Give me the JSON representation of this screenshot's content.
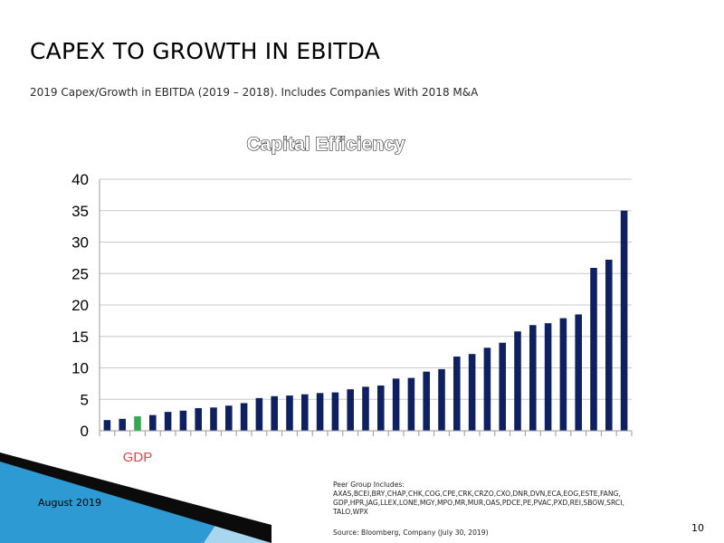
{
  "slide": {
    "title": "CAPEX TO GROWTH IN EBITDA",
    "subtitle": "2019 Capex/Growth in EBITDA (2019 – 2018). Includes Companies With 2018 M&A",
    "date": "August 2019",
    "page_number": "10"
  },
  "footnote": {
    "peer_group_lines": [
      "Peer Group Includes:",
      "AXAS,BCEI,BRY,CHAP,CHK,COG,CPE,CRK,CRZO,CXO,DNR,DVN,ECA,EOG,ESTE,FANG,",
      "GDP,HPR,JAG,LLEX,LONE,MGY,MPO,MR,MUR,OAS,PDCE,PE,PVAC,PXD,REI,SBOW,SRCI,",
      "TALO,WPX"
    ],
    "source": "Source: Bloomberg, Company (July 30, 2019)"
  },
  "colors": {
    "bar": "#0e2060",
    "highlight_bar": "#36a852",
    "highlight_label": "#e0454b",
    "gridline": "#c8c8c8",
    "deco_dark": "#0b0b0b",
    "deco_blue": "#2d9ad3",
    "deco_light": "#a9d6ef"
  },
  "chart_data": {
    "type": "bar",
    "title": "Capital Efficiency",
    "xlabel": "",
    "ylabel": "",
    "ylim": [
      0,
      40
    ],
    "yticks": [
      0,
      5,
      10,
      15,
      20,
      25,
      30,
      35,
      40
    ],
    "grid": true,
    "highlight_index": 2,
    "highlight_label": "GDP",
    "values": [
      1.7,
      1.9,
      2.3,
      2.5,
      3.0,
      3.2,
      3.6,
      3.7,
      4.0,
      4.4,
      5.2,
      5.5,
      5.6,
      5.8,
      6.0,
      6.1,
      6.6,
      7.0,
      7.2,
      8.3,
      8.4,
      9.4,
      9.8,
      11.8,
      12.2,
      13.2,
      14.0,
      15.8,
      16.8,
      17.1,
      17.9,
      18.5,
      25.9,
      27.2,
      35.0
    ]
  }
}
